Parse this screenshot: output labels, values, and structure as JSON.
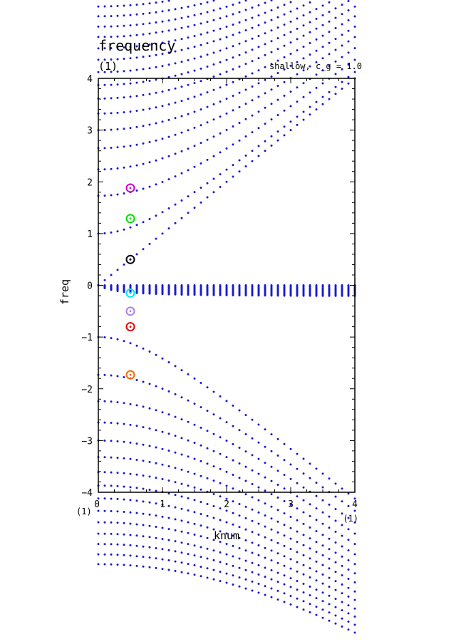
{
  "chart_data": {
    "type": "scatter",
    "title": "frequency",
    "title_units": "(1)",
    "annotation": "shallow, c_g = 1.0",
    "xlabel": "knum",
    "ylabel": "freq",
    "x_unit_left": "(1)",
    "x_unit_right": "(1)",
    "xlim": [
      0,
      4
    ],
    "ylim": [
      -4,
      4
    ],
    "x_ticks": [
      "0",
      "1",
      "2",
      "3",
      "4"
    ],
    "y_ticks": [
      "4",
      "3",
      "2",
      "1",
      "0",
      "−1",
      "−2",
      "−3",
      "−4"
    ],
    "grid": false,
    "dot_color": "#1a1acc",
    "branches": {
      "positive_gravity_intercepts": [
        0.0,
        1.0,
        1.73,
        2.24,
        2.65,
        3.0,
        3.32,
        3.61,
        3.87,
        4.12,
        4.36,
        4.58,
        4.8,
        5.0,
        5.2,
        5.39,
        5.57
      ],
      "negative_gravity_intercepts": [
        -1.0,
        -1.73,
        -2.24,
        -2.65,
        -3.0,
        -3.32,
        -3.61,
        -3.87,
        -4.12,
        -4.36,
        -4.58,
        -4.8,
        -5.0,
        -5.2,
        -5.39
      ],
      "rossby_offsets": [
        0.0,
        0.03,
        0.055,
        0.08,
        0.1,
        0.125,
        0.15,
        0.175,
        0.2,
        0.22
      ]
    },
    "highlighted_points": [
      {
        "x": 0.5,
        "y": 1.88,
        "color": "#cc00cc"
      },
      {
        "x": 0.5,
        "y": 1.29,
        "color": "#00dd00"
      },
      {
        "x": 0.5,
        "y": 0.5,
        "color": "#000000"
      },
      {
        "x": 0.5,
        "y": -0.15,
        "color": "#00e5ff"
      },
      {
        "x": 0.5,
        "y": -0.5,
        "color": "#b07fe8"
      },
      {
        "x": 0.5,
        "y": -0.8,
        "color": "#ee0000"
      },
      {
        "x": 0.5,
        "y": -1.73,
        "color": "#ff6600"
      }
    ]
  }
}
